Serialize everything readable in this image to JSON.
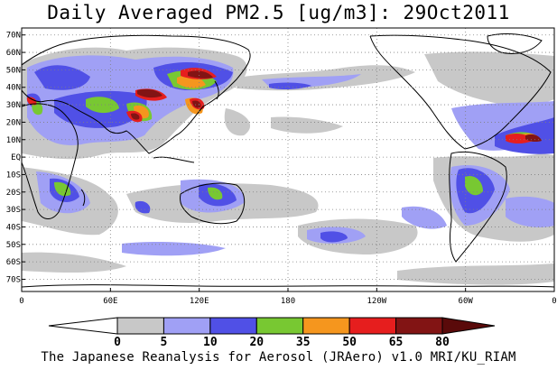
{
  "title": "Daily Averaged PM2.5 [ug/m3]: 29Oct2011",
  "footer": "The Japanese Reanalysis for Aerosol (JRAero) v1.0 MRI/KU_RIAM",
  "map": {
    "lon_range": [
      0,
      360
    ],
    "lat_range": [
      -77,
      74
    ],
    "lat_ticks": [
      {
        "lat": 70,
        "label": "70N"
      },
      {
        "lat": 60,
        "label": "60N"
      },
      {
        "lat": 50,
        "label": "50N"
      },
      {
        "lat": 40,
        "label": "40N"
      },
      {
        "lat": 30,
        "label": "30N"
      },
      {
        "lat": 20,
        "label": "20N"
      },
      {
        "lat": 10,
        "label": "10N"
      },
      {
        "lat": 0,
        "label": "EQ"
      },
      {
        "lat": -10,
        "label": "10S"
      },
      {
        "lat": -20,
        "label": "20S"
      },
      {
        "lat": -30,
        "label": "30S"
      },
      {
        "lat": -40,
        "label": "40S"
      },
      {
        "lat": -50,
        "label": "50S"
      },
      {
        "lat": -60,
        "label": "60S"
      },
      {
        "lat": -70,
        "label": "70S"
      }
    ],
    "lon_ticks": [
      {
        "lon": 0,
        "label": "0"
      },
      {
        "lon": 60,
        "label": "60E"
      },
      {
        "lon": 120,
        "label": "120E"
      },
      {
        "lon": 180,
        "label": "180"
      },
      {
        "lon": 240,
        "label": "120W"
      },
      {
        "lon": 300,
        "label": "60W"
      },
      {
        "lon": 360,
        "label": "0"
      }
    ]
  },
  "legend": {
    "levels": [
      "0",
      "5",
      "10",
      "20",
      "35",
      "50",
      "65",
      "80"
    ],
    "colors": [
      "#ffffff",
      "#c8c8c8",
      "#a0a0f5",
      "#5050e6",
      "#78c832",
      "#f5961e",
      "#e61e1e",
      "#821414"
    ],
    "below_color": "#ffffff",
    "above_color": "#5a0a0a"
  },
  "colors": {
    "c5": "#c8c8c8",
    "c10": "#a0a0f5",
    "c20": "#5050e6",
    "c35": "#78c832",
    "c50": "#f5961e",
    "c65": "#e61e1e",
    "c80": "#821414"
  }
}
